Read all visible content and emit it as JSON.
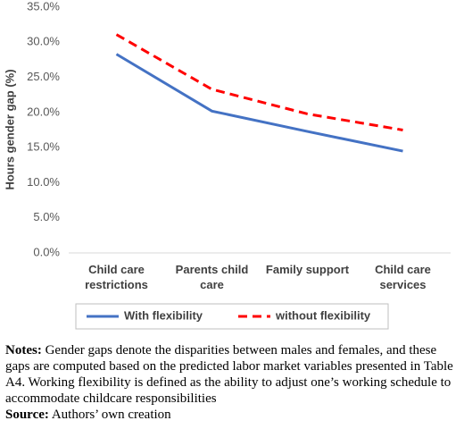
{
  "chart_data": {
    "type": "line",
    "y_label": "Hours gender gap (%)",
    "categories": [
      "Child care restrictions",
      "Parents child care",
      "Family support",
      "Child care services"
    ],
    "series": [
      {
        "name": "With flexibility",
        "color": "#4472c4",
        "dash": false,
        "values": [
          28.3,
          20.2,
          17.3,
          14.5
        ]
      },
      {
        "name": "without flexibility",
        "color": "#ff0000",
        "dash": true,
        "values": [
          31.1,
          23.3,
          19.8,
          17.5
        ]
      }
    ],
    "ylim": [
      0,
      35
    ],
    "yticks": [
      {
        "value": 0,
        "label": "0.0%"
      },
      {
        "value": 5,
        "label": "5.0%"
      },
      {
        "value": 10,
        "label": "10.0%"
      },
      {
        "value": 15,
        "label": "15.0%"
      },
      {
        "value": 20,
        "label": "20.0%"
      },
      {
        "value": 25,
        "label": "25.0%"
      },
      {
        "value": 30,
        "label": "30.0%"
      },
      {
        "value": 35,
        "label": "35.0%"
      }
    ],
    "grid": false,
    "legend": "bottom"
  },
  "notes": {
    "label": "Notes:",
    "text": "Gender gaps denote the disparities between males and females, and these gaps are computed based on the predicted labor market variables presented in Table A4. Working flexibility is defined as the ability to adjust one’s working schedule to accommodate childcare responsibilities"
  },
  "source": {
    "label": "Source:",
    "text": "Authors’ own creation"
  }
}
